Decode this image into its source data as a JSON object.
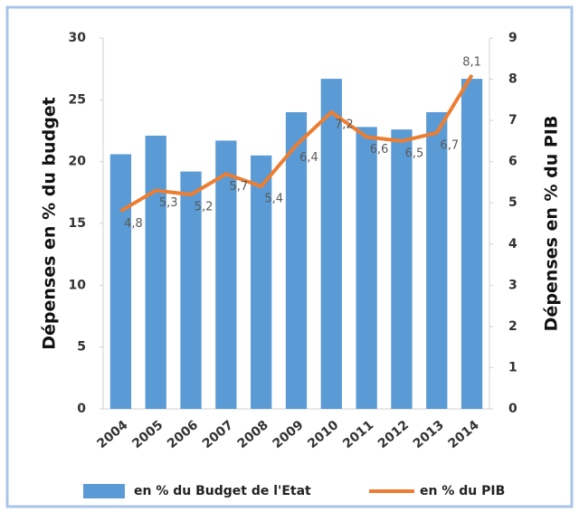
{
  "chart_data": {
    "type": "bar-line",
    "categories": [
      "2004",
      "2005",
      "2006",
      "2007",
      "2008",
      "2009",
      "2010",
      "2011",
      "2012",
      "2013",
      "2014"
    ],
    "series": [
      {
        "name": "en % du Budget de l'Etat",
        "color": "#5b9bd5",
        "type": "bar",
        "axis": "y",
        "values": [
          20.6,
          22.1,
          19.2,
          21.7,
          20.5,
          24.0,
          26.7,
          22.8,
          22.6,
          24.0,
          26.7
        ]
      },
      {
        "name": "en % du PIB",
        "color": "#ed7d31",
        "type": "line",
        "axis": "y2",
        "values": [
          4.8,
          5.3,
          5.2,
          5.7,
          5.4,
          6.4,
          7.2,
          6.6,
          6.5,
          6.7,
          8.1
        ],
        "value_labels": [
          "4,8",
          "5,3",
          "5,2",
          "5,7",
          "5,4",
          "6,4",
          "7,2",
          "6,6",
          "6,5",
          "6,7",
          "8,1"
        ]
      }
    ],
    "ylabel": "Dépenses en % du budget",
    "y2label": "Dépenses en % du PIB",
    "ylim": [
      0,
      30
    ],
    "yticks": [
      0,
      5,
      10,
      15,
      20,
      25,
      30
    ],
    "y2lim": [
      0,
      9
    ],
    "y2ticks": [
      0,
      1,
      2,
      3,
      4,
      5,
      6,
      7,
      8,
      9
    ],
    "grid": false,
    "legend": "bottom"
  }
}
